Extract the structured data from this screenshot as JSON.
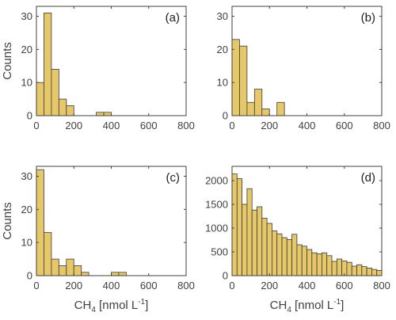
{
  "figure": {
    "bar_color": "#E6C86A",
    "edge_color": "#3a3a3a",
    "axis_color": "#404040"
  },
  "chart_data": [
    {
      "type": "bar",
      "panel": "(a)",
      "ylabel": "Counts",
      "xlabel": "",
      "bin_width": 40,
      "bin_edges_start": 0,
      "values": [
        10,
        31,
        14,
        5,
        3,
        0,
        0,
        0,
        1,
        1
      ],
      "xlim": [
        0,
        800
      ],
      "ylim": [
        0,
        33
      ],
      "xticks": [
        0,
        200,
        400,
        600,
        800
      ],
      "yticks": [
        0,
        10,
        20,
        30
      ]
    },
    {
      "type": "bar",
      "panel": "(b)",
      "ylabel": "",
      "xlabel": "",
      "bin_width": 40,
      "bin_edges_start": 0,
      "values": [
        23,
        21,
        4,
        8,
        2,
        0,
        4
      ],
      "xlim": [
        0,
        800
      ],
      "ylim": [
        0,
        33
      ],
      "xticks": [
        0,
        200,
        400,
        600,
        800
      ],
      "yticks": [
        0,
        10,
        20,
        30
      ]
    },
    {
      "type": "bar",
      "panel": "(c)",
      "ylabel": "Counts",
      "xlabel": "CH4 [nmol L-1]",
      "xlabel_main": "CH",
      "xlabel_sub": "4",
      "xlabel_mid": " [nmol L",
      "xlabel_sup": "-1",
      "xlabel_end": "]",
      "bin_width": 40,
      "bin_edges_start": 0,
      "values": [
        32,
        13,
        5,
        3,
        5,
        3,
        1,
        0,
        0,
        0,
        1,
        1
      ],
      "xlim": [
        0,
        800
      ],
      "ylim": [
        0,
        33
      ],
      "xticks": [
        0,
        200,
        400,
        600,
        800
      ],
      "yticks": [
        0,
        10,
        20,
        30
      ]
    },
    {
      "type": "bar",
      "panel": "(d)",
      "ylabel": "",
      "xlabel": "CH4 [nmol L-1]",
      "xlabel_main": "CH",
      "xlabel_sub": "4",
      "xlabel_mid": " [nmol L",
      "xlabel_sup": "-1",
      "xlabel_end": "]",
      "bin_width": 26.67,
      "bin_edges_start": 0,
      "values": [
        2140,
        2040,
        1500,
        1830,
        1380,
        1450,
        1210,
        1100,
        940,
        880,
        800,
        760,
        870,
        650,
        620,
        550,
        480,
        460,
        480,
        420,
        300,
        350,
        310,
        280,
        200,
        230,
        190,
        160,
        130,
        110
      ],
      "xlim": [
        0,
        800
      ],
      "ylim": [
        0,
        2300
      ],
      "xticks": [
        0,
        200,
        400,
        600,
        800
      ],
      "yticks": [
        0,
        500,
        1000,
        1500,
        2000
      ]
    }
  ]
}
